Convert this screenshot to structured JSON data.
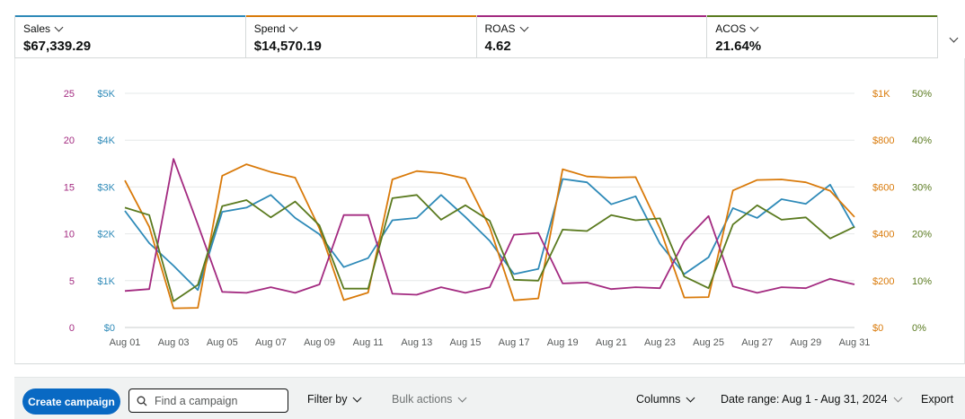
{
  "metrics": [
    {
      "label": "Sales",
      "value": "$67,339.29",
      "color": "#2e8ab8"
    },
    {
      "label": "Spend",
      "value": "$14,570.19",
      "color": "#d97a0a"
    },
    {
      "label": "ROAS",
      "value": "4.62",
      "color": "#a32a80"
    },
    {
      "label": "ACOS",
      "value": "21.64%",
      "color": "#5a7a1f"
    }
  ],
  "toolbar": {
    "create_label": "Create campaign",
    "search_placeholder": "Find a campaign",
    "filter_label": "Filter by",
    "bulk_label": "Bulk actions",
    "columns_label": "Columns",
    "date_label": "Date range: Aug 1 - Aug 31, 2024",
    "export_label": "Export"
  },
  "chart_data": {
    "type": "line",
    "x": [
      "Aug 01",
      "Aug 02",
      "Aug 03",
      "Aug 04",
      "Aug 05",
      "Aug 06",
      "Aug 07",
      "Aug 08",
      "Aug 09",
      "Aug 10",
      "Aug 11",
      "Aug 12",
      "Aug 13",
      "Aug 14",
      "Aug 15",
      "Aug 16",
      "Aug 17",
      "Aug 18",
      "Aug 19",
      "Aug 20",
      "Aug 21",
      "Aug 22",
      "Aug 23",
      "Aug 24",
      "Aug 25",
      "Aug 26",
      "Aug 27",
      "Aug 28",
      "Aug 29",
      "Aug 30",
      "Aug 31"
    ],
    "x_tick_labels": [
      "Aug 01",
      "Aug 03",
      "Aug 05",
      "Aug 07",
      "Aug 09",
      "Aug 11",
      "Aug 13",
      "Aug 15",
      "Aug 17",
      "Aug 19",
      "Aug 21",
      "Aug 23",
      "Aug 25",
      "Aug 27",
      "Aug 29",
      "Aug 31"
    ],
    "axes": {
      "roas": {
        "ticks": [
          "0",
          "5",
          "10",
          "15",
          "20",
          "25"
        ],
        "range": [
          0,
          25
        ],
        "color": "#a32a80"
      },
      "sales": {
        "ticks": [
          "$0",
          "$1K",
          "$2K",
          "$3K",
          "$4K",
          "$5K"
        ],
        "range": [
          0,
          5000
        ],
        "color": "#2e8ab8"
      },
      "spend": {
        "ticks": [
          "$0",
          "$200",
          "$400",
          "$600",
          "$800",
          "$1K"
        ],
        "range": [
          0,
          1000
        ],
        "color": "#d97a0a"
      },
      "acos": {
        "ticks": [
          "0%",
          "10%",
          "20%",
          "30%",
          "40%",
          "50%"
        ],
        "range": [
          0,
          50
        ],
        "color": "#5a7a1f"
      }
    },
    "grid": true,
    "series": [
      {
        "name": "Sales",
        "axis": "sales",
        "color": "#2e8ab8",
        "values": [
          2490,
          1800,
          1320,
          800,
          2470,
          2560,
          2830,
          2340,
          1990,
          1290,
          1480,
          2290,
          2340,
          2830,
          2360,
          1850,
          1140,
          1250,
          3170,
          3100,
          2630,
          2800,
          1790,
          1140,
          1500,
          2550,
          2340,
          2740,
          2640,
          3050,
          2130
        ]
      },
      {
        "name": "Spend",
        "axis": "spend",
        "color": "#d97a0a",
        "values": [
          628,
          430,
          82,
          84,
          648,
          697,
          664,
          640,
          423,
          117,
          149,
          632,
          668,
          659,
          636,
          428,
          116,
          124,
          676,
          645,
          640,
          642,
          423,
          128,
          130,
          585,
          630,
          632,
          620,
          584,
          472
        ]
      },
      {
        "name": "ROAS",
        "axis": "roas",
        "color": "#a32a80",
        "values": [
          3.9,
          4.1,
          18.0,
          11.0,
          3.8,
          3.7,
          4.3,
          3.7,
          4.6,
          12.0,
          12.0,
          3.6,
          3.5,
          4.3,
          3.7,
          4.3,
          9.9,
          10.1,
          4.7,
          4.8,
          4.1,
          4.3,
          4.2,
          9.2,
          11.9,
          4.4,
          3.7,
          4.3,
          4.2,
          5.2,
          4.6
        ]
      },
      {
        "name": "ACOS",
        "axis": "acos",
        "color": "#5a7a1f",
        "values": [
          25.6,
          24.0,
          5.6,
          9.1,
          25.9,
          27.2,
          23.5,
          26.9,
          21.8,
          8.3,
          8.3,
          27.6,
          28.3,
          23.0,
          26.1,
          22.8,
          10.2,
          10.0,
          20.9,
          20.6,
          24.0,
          22.9,
          23.3,
          10.9,
          8.4,
          22.0,
          26.1,
          23.0,
          23.5,
          19.0,
          21.5
        ]
      }
    ]
  }
}
